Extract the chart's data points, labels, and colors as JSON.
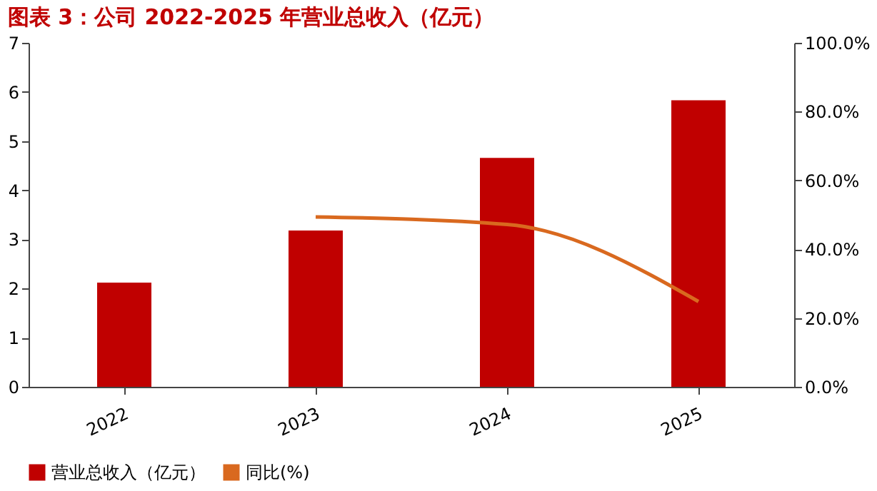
{
  "chart_data": {
    "type": "bar",
    "title": "图表 3：公司 2022-2025 年营业总收入（亿元）",
    "categories": [
      "2022",
      "2023",
      "2024",
      "2025"
    ],
    "series": [
      {
        "name": "营业总收入（亿元）",
        "color": "#c00000",
        "values": [
          2.12,
          3.18,
          4.66,
          5.83
        ]
      },
      {
        "name": "同比(%)",
        "color": "#d9691f",
        "type": "line",
        "axis": "y2",
        "values": [
          null,
          49.4,
          47.2,
          24.8
        ]
      }
    ],
    "ylim": [
      0,
      7
    ],
    "yticks": [
      0,
      1,
      2,
      3,
      4,
      5,
      6,
      7
    ],
    "y2lim": [
      0,
      100
    ],
    "y2ticks": [
      {
        "value": 0,
        "label": "0.0%"
      },
      {
        "value": 20,
        "label": "20.0%"
      },
      {
        "value": 40,
        "label": "40.0%"
      },
      {
        "value": 60,
        "label": "60.0%"
      },
      {
        "value": 80,
        "label": "80.0%"
      },
      {
        "value": 100,
        "label": "100.0%"
      }
    ],
    "grid": false,
    "legend": "bottom"
  }
}
